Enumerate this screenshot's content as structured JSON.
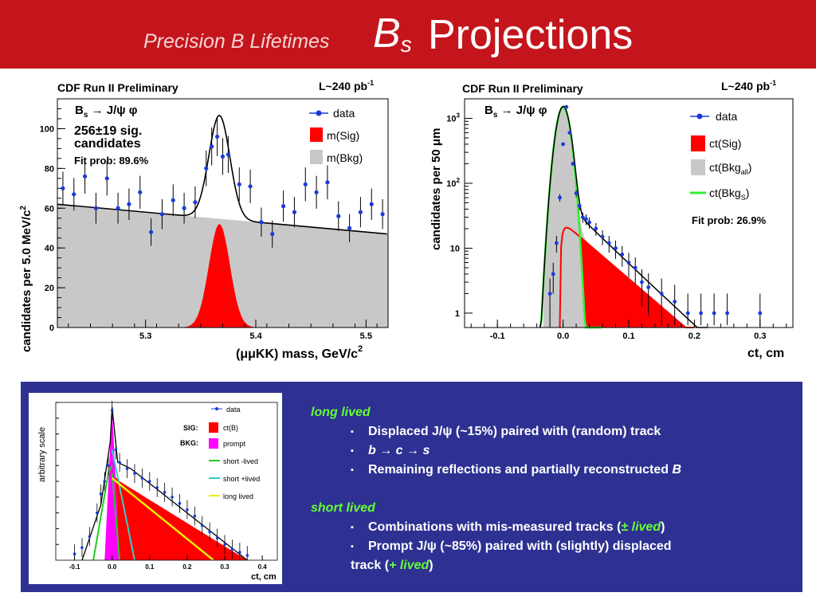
{
  "title": {
    "small": "Precision B Lifetimes",
    "b_letter": "B",
    "b_sub": "s",
    "main": "Projections"
  },
  "chart_data": [
    {
      "type": "scatter",
      "header_left": "CDF Run II Preliminary",
      "header_right": "L~240 pb",
      "header_right_sup": "-1",
      "xlabel": "(μμKK) mass, GeV/c",
      "xlabel_sup": "2",
      "ylabel": "candidates per 5.0 MeV/c",
      "ylabel_sup": "2",
      "xlim": [
        5.22,
        5.52
      ],
      "ylim": [
        0,
        115
      ],
      "x_ticks": [
        5.3,
        5.4,
        5.5
      ],
      "y_ticks": [
        0,
        20,
        40,
        60,
        80,
        100
      ],
      "annotations": [
        "B",
        "s",
        " → J/ψ φ",
        "256±19 sig.",
        "candidates",
        "Fit prob: 89.6%"
      ],
      "legend": [
        "data",
        "m(Sig)",
        "m(Bkg)"
      ],
      "legend_position": "top-right",
      "signal": {
        "mean": 5.367,
        "sigma": 0.0095,
        "peak": 52
      },
      "background": {
        "start": 62,
        "end": 47
      },
      "series": [
        {
          "name": "data",
          "x": [
            5.225,
            5.235,
            5.245,
            5.255,
            5.265,
            5.275,
            5.285,
            5.295,
            5.305,
            5.315,
            5.325,
            5.335,
            5.345,
            5.355,
            5.36,
            5.365,
            5.37,
            5.375,
            5.385,
            5.395,
            5.405,
            5.415,
            5.425,
            5.435,
            5.445,
            5.455,
            5.465,
            5.475,
            5.485,
            5.495,
            5.505,
            5.515
          ],
          "y": [
            70,
            67,
            76,
            60,
            75,
            60,
            62,
            68,
            48,
            57,
            64,
            60,
            63,
            80,
            91,
            96,
            86,
            87,
            72,
            71,
            53,
            47,
            61,
            58,
            72,
            68,
            73,
            56,
            50,
            58,
            62,
            57
          ]
        }
      ]
    },
    {
      "type": "scatter",
      "header_left": "CDF Run II Preliminary",
      "header_right": "L~240 pb",
      "header_right_sup": "-1",
      "xlabel": "ct, cm",
      "ylabel": "candidates per 50 μm",
      "yscale": "log",
      "xlim": [
        -0.15,
        0.35
      ],
      "ylim": [
        0.6,
        2000
      ],
      "x_ticks": [
        -0.1,
        0.0,
        0.1,
        0.2,
        0.3
      ],
      "y_ticks": [
        "1",
        "10",
        "10^2",
        "10^3"
      ],
      "annotations": [
        "B",
        "s",
        " → J/ψ φ",
        "Fit prob: 26.9%"
      ],
      "legend": [
        "data",
        "ct(Sig)",
        "ct(Bkg",
        "all",
        ")",
        "ct(Bkg",
        "S",
        ")"
      ],
      "legend_position": "top-right",
      "series": [
        {
          "name": "data",
          "x": [
            -0.02,
            -0.015,
            -0.01,
            -0.005,
            0.0,
            0.005,
            0.01,
            0.015,
            0.02,
            0.025,
            0.03,
            0.035,
            0.04,
            0.05,
            0.06,
            0.07,
            0.08,
            0.09,
            0.1,
            0.11,
            0.12,
            0.13,
            0.15,
            0.17,
            0.19,
            0.21,
            0.23,
            0.25,
            0.3
          ],
          "y": [
            2,
            4,
            12,
            60,
            400,
            1500,
            600,
            200,
            70,
            45,
            30,
            28,
            25,
            20,
            15,
            12,
            10,
            8,
            6,
            5,
            3,
            2.5,
            2,
            1.5,
            1,
            1,
            1,
            1,
            1
          ]
        }
      ]
    },
    {
      "type": "scatter",
      "ylabel": "arbitrary scale",
      "xlabel": "ct, cm",
      "x_ticks": [
        -0.1,
        0.0,
        0.1,
        0.2,
        0.3,
        0.4
      ],
      "legend": [
        "data",
        "SIG:",
        "ct(B)",
        "BKG:",
        "prompt",
        "short  -lived",
        "short +lived",
        "long lived"
      ],
      "legend_position": "top-right"
    }
  ],
  "bullets": {
    "long_header": "long lived",
    "long_items": [
      "Displaced J/ψ (~15%) paired with (random) track",
      "b → c → s",
      "Remaining reflections and partially reconstructed"
    ],
    "long_item3_tail": "B",
    "short_header": "short lived",
    "short_item1_pre": "Combinations with mis-measured tracks (",
    "short_item1_it": "± lived",
    "short_item1_post": ")",
    "short_item2_line1": "Prompt J/ψ (~85%) paired with (slightly) displaced",
    "short_item2_line2_pre": "track (",
    "short_item2_line2_it": "+ lived",
    "short_item2_line2_post": ")"
  }
}
